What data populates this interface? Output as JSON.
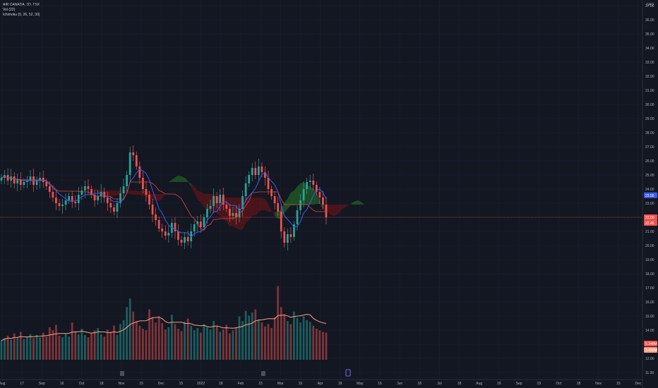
{
  "legend": {
    "symbol": "AIR CANADA, 1D, TSX",
    "volume": "Vol (22)",
    "ichimoku": "Ichimoku (9, 26, 52, 30)"
  },
  "currency": "CAD",
  "chart_data": {
    "type": "candlestick",
    "ylim": [
      11.0,
      37.0
    ],
    "price_ticks": [
      "37.00",
      "36.00",
      "35.00",
      "34.00",
      "33.00",
      "32.00",
      "31.00",
      "30.00",
      "29.00",
      "28.00",
      "27.00",
      "26.00",
      "25.00",
      "24.00",
      "23.00",
      "22.00",
      "21.00",
      "20.00",
      "19.00",
      "18.00",
      "17.00",
      "16.00",
      "15.00",
      "14.00",
      "13.00",
      "12.00",
      "11.00"
    ],
    "x_ticks": [
      "Aug",
      "17",
      "Sep",
      "16",
      "Oct",
      "18",
      "Nov",
      "15",
      "Dec",
      "15",
      "2022",
      "18",
      "Feb",
      "15",
      "Mar",
      "15",
      "Apr",
      "18",
      "May",
      "16",
      "Jun",
      "18",
      "Jul",
      "18",
      "Aug",
      "16",
      "Sep",
      "19",
      "Oct",
      "18",
      "Nov",
      "15",
      "Dec"
    ],
    "tags": {
      "blue_value": "23.56",
      "current_price": "22.00",
      "current_price_sub": "22.45",
      "volume_value": "5.348M",
      "volume_ma": "3.490M"
    },
    "close_series": [
      24.8,
      25.0,
      24.6,
      24.9,
      24.4,
      24.7,
      24.3,
      24.5,
      24.6,
      24.9,
      24.3,
      24.6,
      24.8,
      24.5,
      24.2,
      23.8,
      23.4,
      23.0,
      22.8,
      22.9,
      23.2,
      23.5,
      23.1,
      23.0,
      23.6,
      23.9,
      24.2,
      24.0,
      23.6,
      23.2,
      23.5,
      23.8,
      23.4,
      23.0,
      22.7,
      22.4,
      23.0,
      23.7,
      24.2,
      25.0,
      26.6,
      26.4,
      25.6,
      24.8,
      24.0,
      23.6,
      22.9,
      22.2,
      21.8,
      21.2,
      21.0,
      20.7,
      20.9,
      21.6,
      21.0,
      20.4,
      20.2,
      20.6,
      20.3,
      21.0,
      21.5,
      21.7,
      21.3,
      22.0,
      22.6,
      22.8,
      23.5,
      23.0,
      23.6,
      22.9,
      22.6,
      22.1,
      22.3,
      22.0,
      22.6,
      23.5,
      24.4,
      25.0,
      25.5,
      25.0,
      25.6,
      25.2,
      24.8,
      24.0,
      23.5,
      23.0,
      22.4,
      21.0,
      20.2,
      20.8,
      20.6,
      21.5,
      22.5,
      23.2,
      24.0,
      24.5,
      24.6,
      24.3,
      23.8,
      23.4,
      22.9,
      22.0
    ],
    "volume_values": [
      2.5,
      2.8,
      3.1,
      2.6,
      3.4,
      2.9,
      3.6,
      2.7,
      3.0,
      3.3,
      2.8,
      3.2,
      2.9,
      3.5,
      3.0,
      4.2,
      3.8,
      4.5,
      3.1,
      2.9,
      3.4,
      3.0,
      4.8,
      3.6,
      3.3,
      4.0,
      3.2,
      2.9,
      3.5,
      3.8,
      4.1,
      3.3,
      3.0,
      3.9,
      3.6,
      4.4,
      3.2,
      4.6,
      5.1,
      6.8,
      7.9,
      6.2,
      5.0,
      4.4,
      4.0,
      3.8,
      6.5,
      5.4,
      4.8,
      5.6,
      4.7,
      3.9,
      4.2,
      5.8,
      4.6,
      4.0,
      3.7,
      4.9,
      5.3,
      4.4,
      3.8,
      4.1,
      3.5,
      4.6,
      4.2,
      3.9,
      5.0,
      4.3,
      3.6,
      3.9,
      4.5,
      3.4,
      3.8,
      4.2,
      5.6,
      5.0,
      6.3,
      5.7,
      6.1,
      6.5,
      5.2,
      4.8,
      4.3,
      4.6,
      4.1,
      5.5,
      9.5,
      6.8,
      5.9,
      5.0,
      4.6,
      6.2,
      5.4,
      4.8,
      5.6,
      5.1,
      4.9,
      4.4,
      4.0,
      3.8,
      3.6,
      3.5
    ]
  }
}
